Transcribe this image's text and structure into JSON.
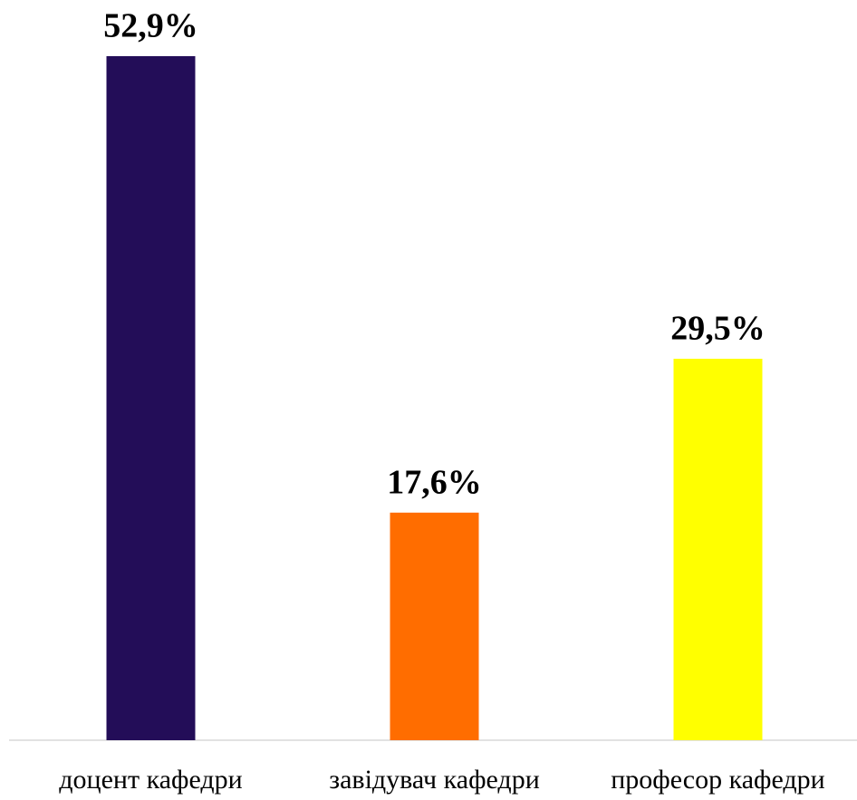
{
  "chart_data": {
    "type": "bar",
    "categories": [
      "доцент кафедри",
      "завідувач кафедри",
      "професор кафедри"
    ],
    "values": [
      52.9,
      17.6,
      29.5
    ],
    "value_labels": [
      "52,9%",
      "17,6%",
      "29,5%"
    ],
    "colors": [
      "#230d58",
      "#ff6d00",
      "#ffff00"
    ]
  }
}
